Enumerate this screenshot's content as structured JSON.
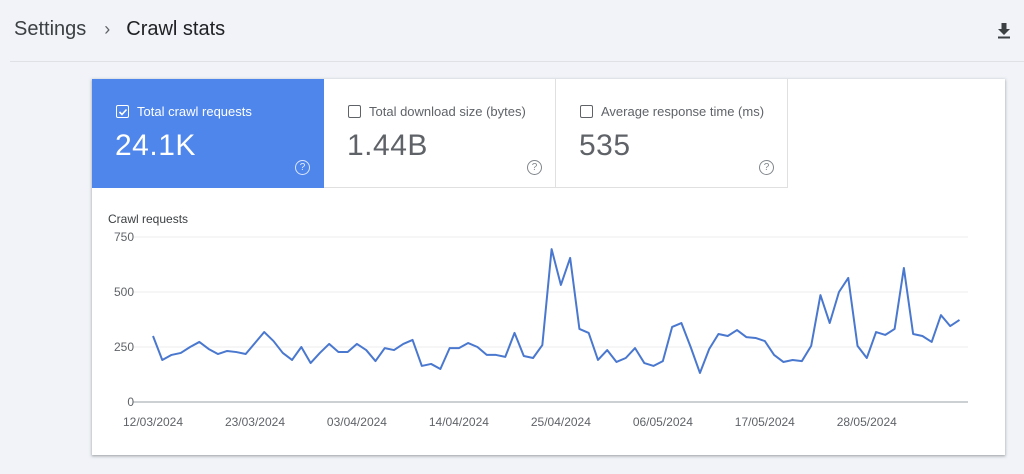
{
  "header": {
    "breadcrumb_parent": "Settings",
    "breadcrumb_separator": "›",
    "breadcrumb_current": "Crawl stats",
    "download_icon": "download-icon"
  },
  "metrics": [
    {
      "label": "Total crawl requests",
      "value": "24.1K",
      "selected": true,
      "help_icon": "help-circle-icon"
    },
    {
      "label": "Total download size (bytes)",
      "value": "1.44B",
      "selected": false,
      "help_icon": "help-circle-icon"
    },
    {
      "label": "Average response time (ms)",
      "value": "535",
      "selected": false,
      "help_icon": "help-circle-icon"
    }
  ],
  "colors": {
    "selected_tile": "#4f86ec",
    "line": "#4a78cf",
    "grid": "#eeeeee",
    "axis": "#9aa0a6"
  },
  "chart_data": {
    "type": "line",
    "title": "Crawl requests",
    "xlabel": "",
    "ylabel": "Crawl requests",
    "ylim": [
      0,
      750
    ],
    "yticks": [
      0,
      250,
      500,
      750
    ],
    "xtick_labels": [
      "12/03/2024",
      "23/03/2024",
      "03/04/2024",
      "14/04/2024",
      "25/04/2024",
      "06/05/2024",
      "17/05/2024",
      "28/05/2024"
    ],
    "grid": true,
    "legend": "none",
    "start_date": "12/03/2024",
    "series": [
      {
        "name": "Crawl requests",
        "values": [
          300,
          191,
          214,
          223,
          250,
          273,
          241,
          218,
          232,
          227,
          218,
          268,
          318,
          277,
          223,
          191,
          250,
          177,
          223,
          264,
          227,
          227,
          264,
          236,
          186,
          245,
          236,
          264,
          282,
          164,
          173,
          150,
          245,
          245,
          268,
          250,
          214,
          214,
          205,
          314,
          209,
          200,
          259,
          695,
          532,
          655,
          332,
          314,
          191,
          236,
          182,
          200,
          245,
          177,
          164,
          186,
          341,
          359,
          250,
          132,
          241,
          309,
          300,
          327,
          295,
          291,
          277,
          214,
          182,
          191,
          186,
          255,
          486,
          359,
          500,
          564,
          255,
          200,
          318,
          305,
          332,
          609,
          309,
          300,
          273,
          395,
          345,
          373
        ]
      }
    ]
  }
}
